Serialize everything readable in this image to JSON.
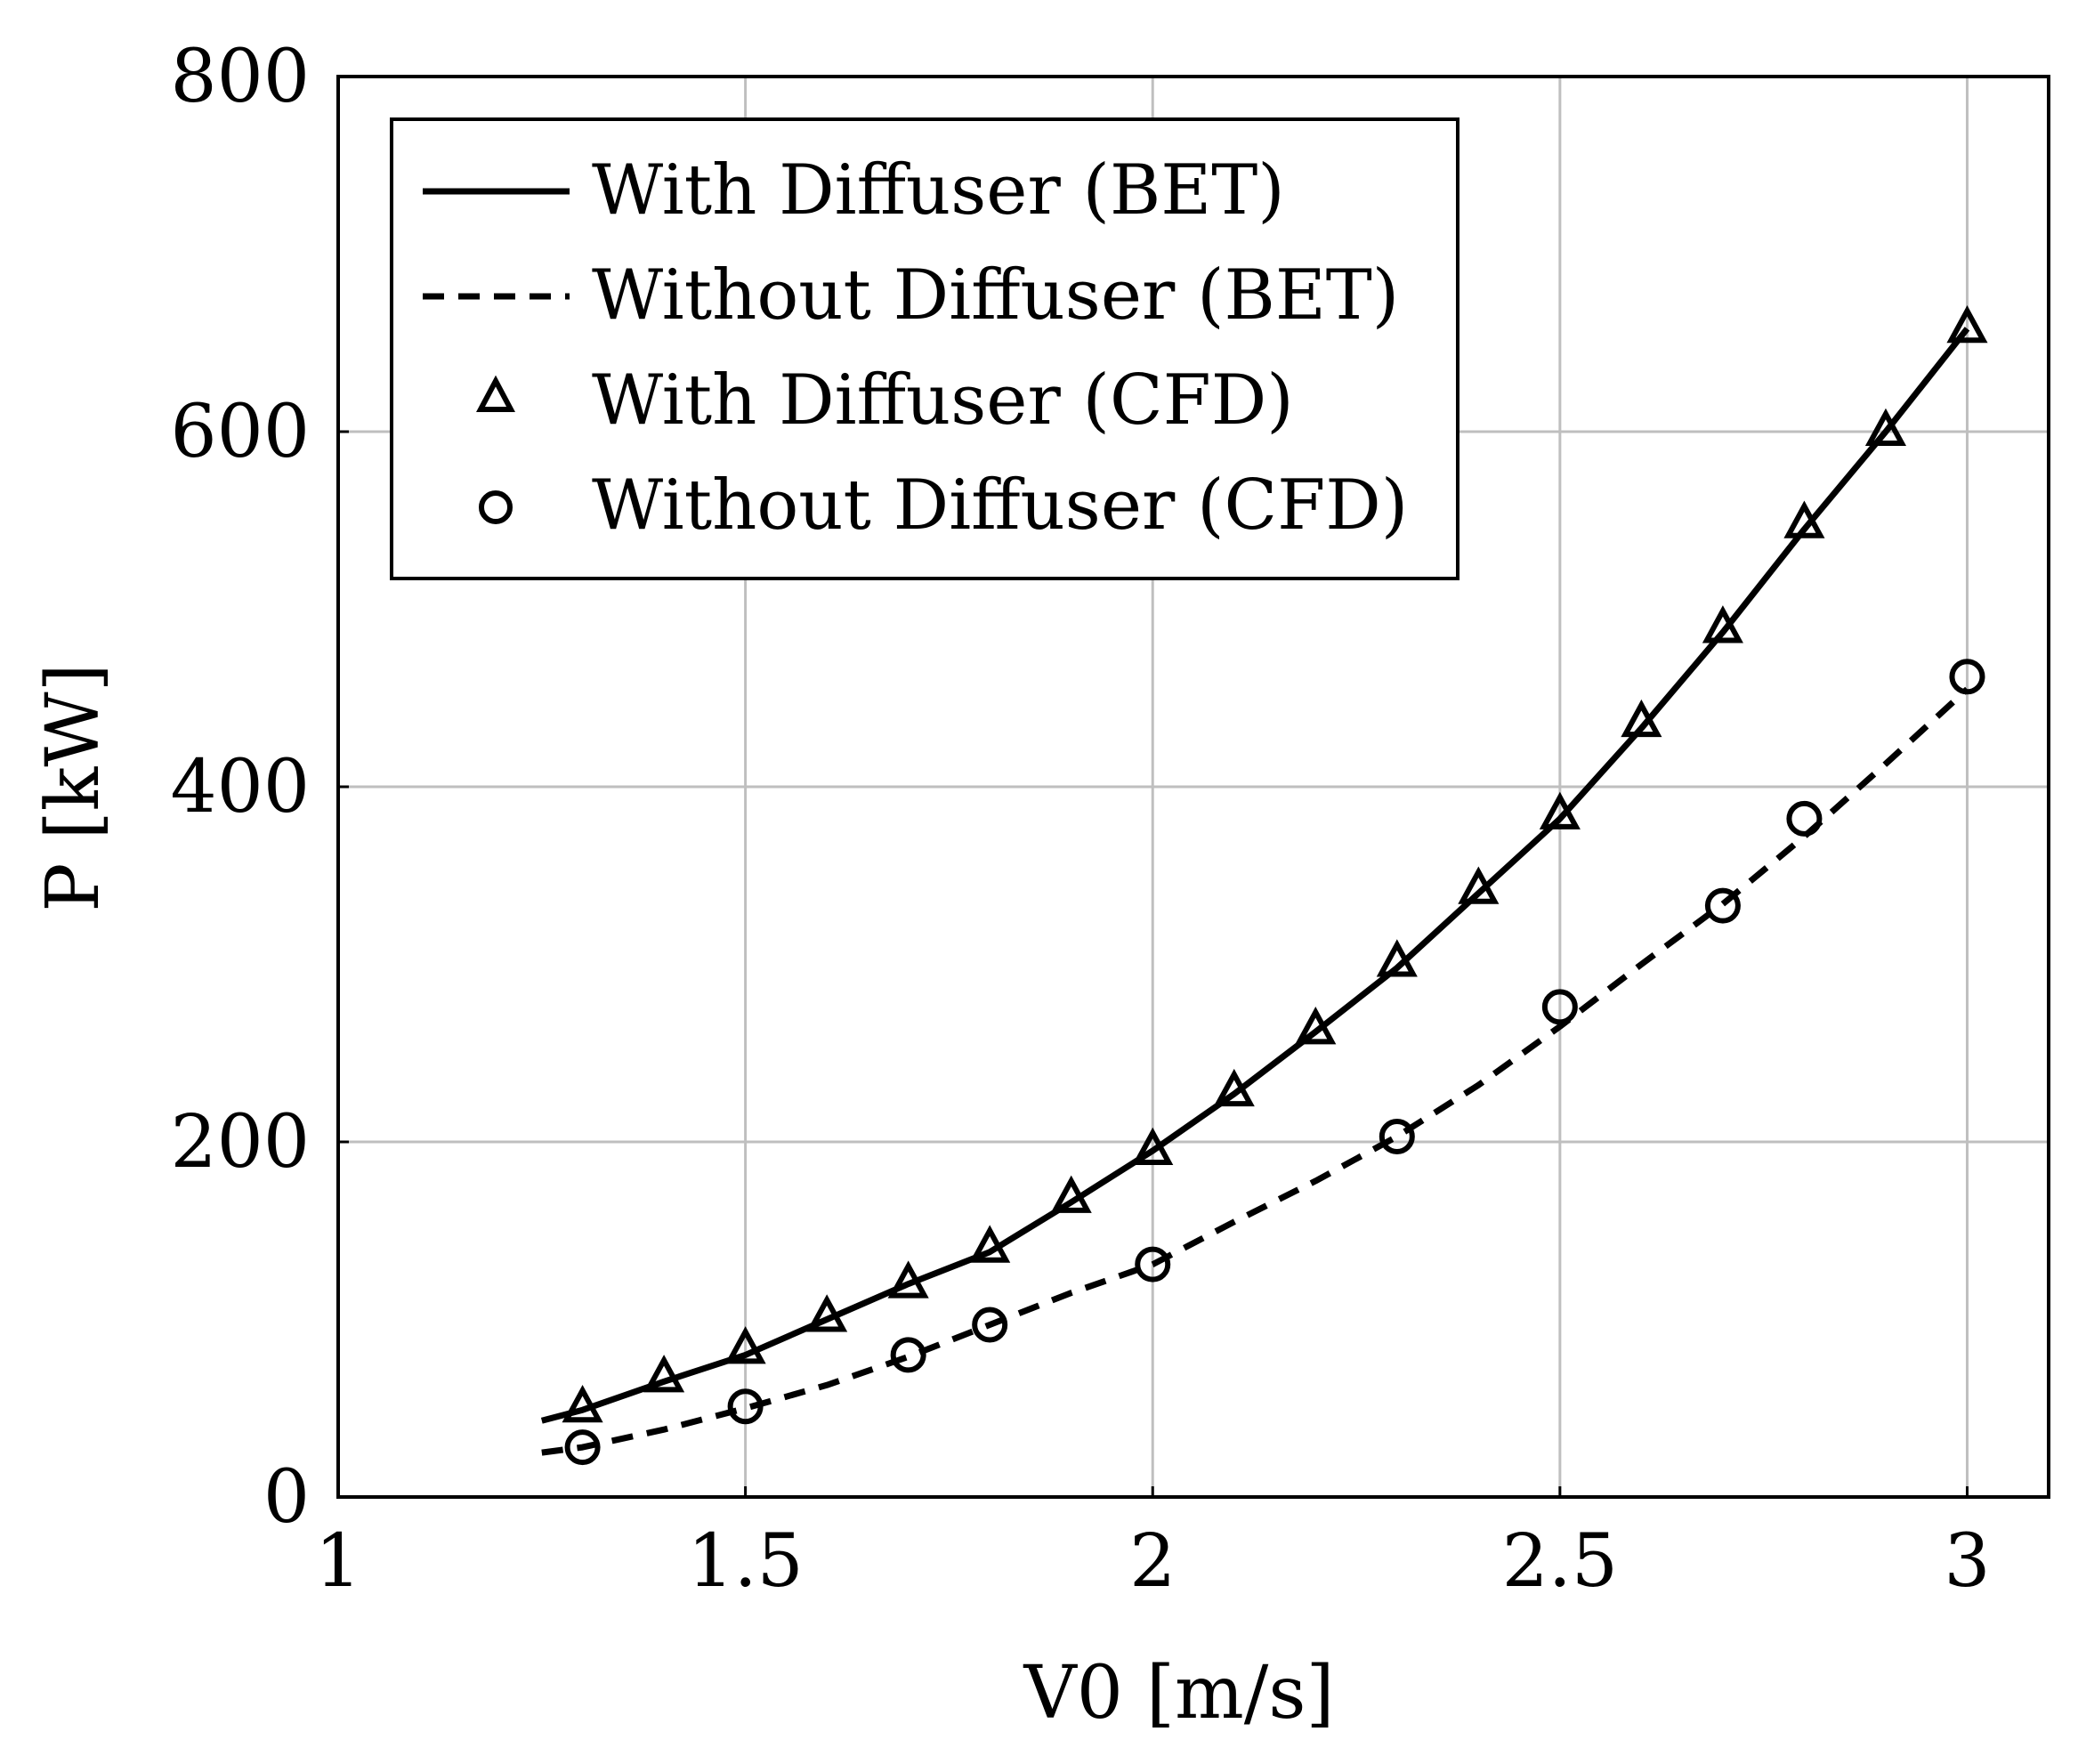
{
  "chart_data": {
    "type": "line",
    "title": "",
    "xlabel": "V0 [m/s]",
    "ylabel": "P [kW]",
    "xlim": [
      1,
      3.1
    ],
    "ylim": [
      0,
      800
    ],
    "xticks": [
      1,
      1.5,
      2,
      2.5,
      3
    ],
    "yticks": [
      0,
      200,
      400,
      600,
      800
    ],
    "xtick_labels": [
      "1",
      "1.5",
      "2",
      "2.5",
      "3"
    ],
    "ytick_labels": [
      "0",
      "200",
      "400",
      "600",
      "800"
    ],
    "grid": true,
    "legend_position": "top-left",
    "colors": {
      "line": "#000000",
      "grid": "#bfbfbf",
      "axis": "#000000"
    },
    "series": [
      {
        "name": "With Diffuser (BET)",
        "style": "solid-line",
        "x": [
          1.25,
          1.3,
          1.4,
          1.5,
          1.6,
          1.7,
          1.8,
          1.9,
          2.0,
          2.1,
          2.2,
          2.3,
          2.4,
          2.5,
          2.6,
          2.7,
          2.8,
          2.9,
          3.0
        ],
        "y": [
          43,
          49,
          65,
          80,
          100,
          120,
          138,
          166,
          195,
          227,
          262,
          298,
          340,
          382,
          433,
          487,
          545,
          600,
          658
        ]
      },
      {
        "name": "Without Diffuser (BET)",
        "style": "dashed-line",
        "x": [
          1.25,
          1.3,
          1.4,
          1.5,
          1.6,
          1.7,
          1.8,
          1.9,
          2.0,
          2.1,
          2.2,
          2.3,
          2.4,
          2.5,
          2.6,
          2.7,
          2.8,
          2.9,
          3.0
        ],
        "y": [
          25,
          28,
          38,
          50,
          63,
          79,
          97,
          115,
          131,
          155,
          178,
          203,
          232,
          265,
          300,
          334,
          372,
          413,
          455
        ]
      },
      {
        "name": "With Diffuser (CFD)",
        "style": "triangle-marker",
        "x": [
          1.3,
          1.4,
          1.5,
          1.6,
          1.7,
          1.8,
          1.9,
          2.0,
          2.1,
          2.2,
          2.3,
          2.4,
          2.5,
          2.6,
          2.7,
          2.8,
          2.9,
          3.0
        ],
        "y": [
          50,
          67,
          83,
          101,
          120,
          140,
          168,
          195,
          228,
          263,
          301,
          342,
          384,
          436,
          489,
          548,
          600,
          658
        ]
      },
      {
        "name": "Without Diffuser (CFD)",
        "style": "circle-marker",
        "x": [
          1.3,
          1.5,
          1.7,
          1.8,
          2.0,
          2.3,
          2.5,
          2.7,
          2.8,
          3.0
        ],
        "y": [
          28,
          51,
          80,
          97,
          131,
          203,
          276,
          333,
          382,
          462
        ]
      }
    ]
  }
}
